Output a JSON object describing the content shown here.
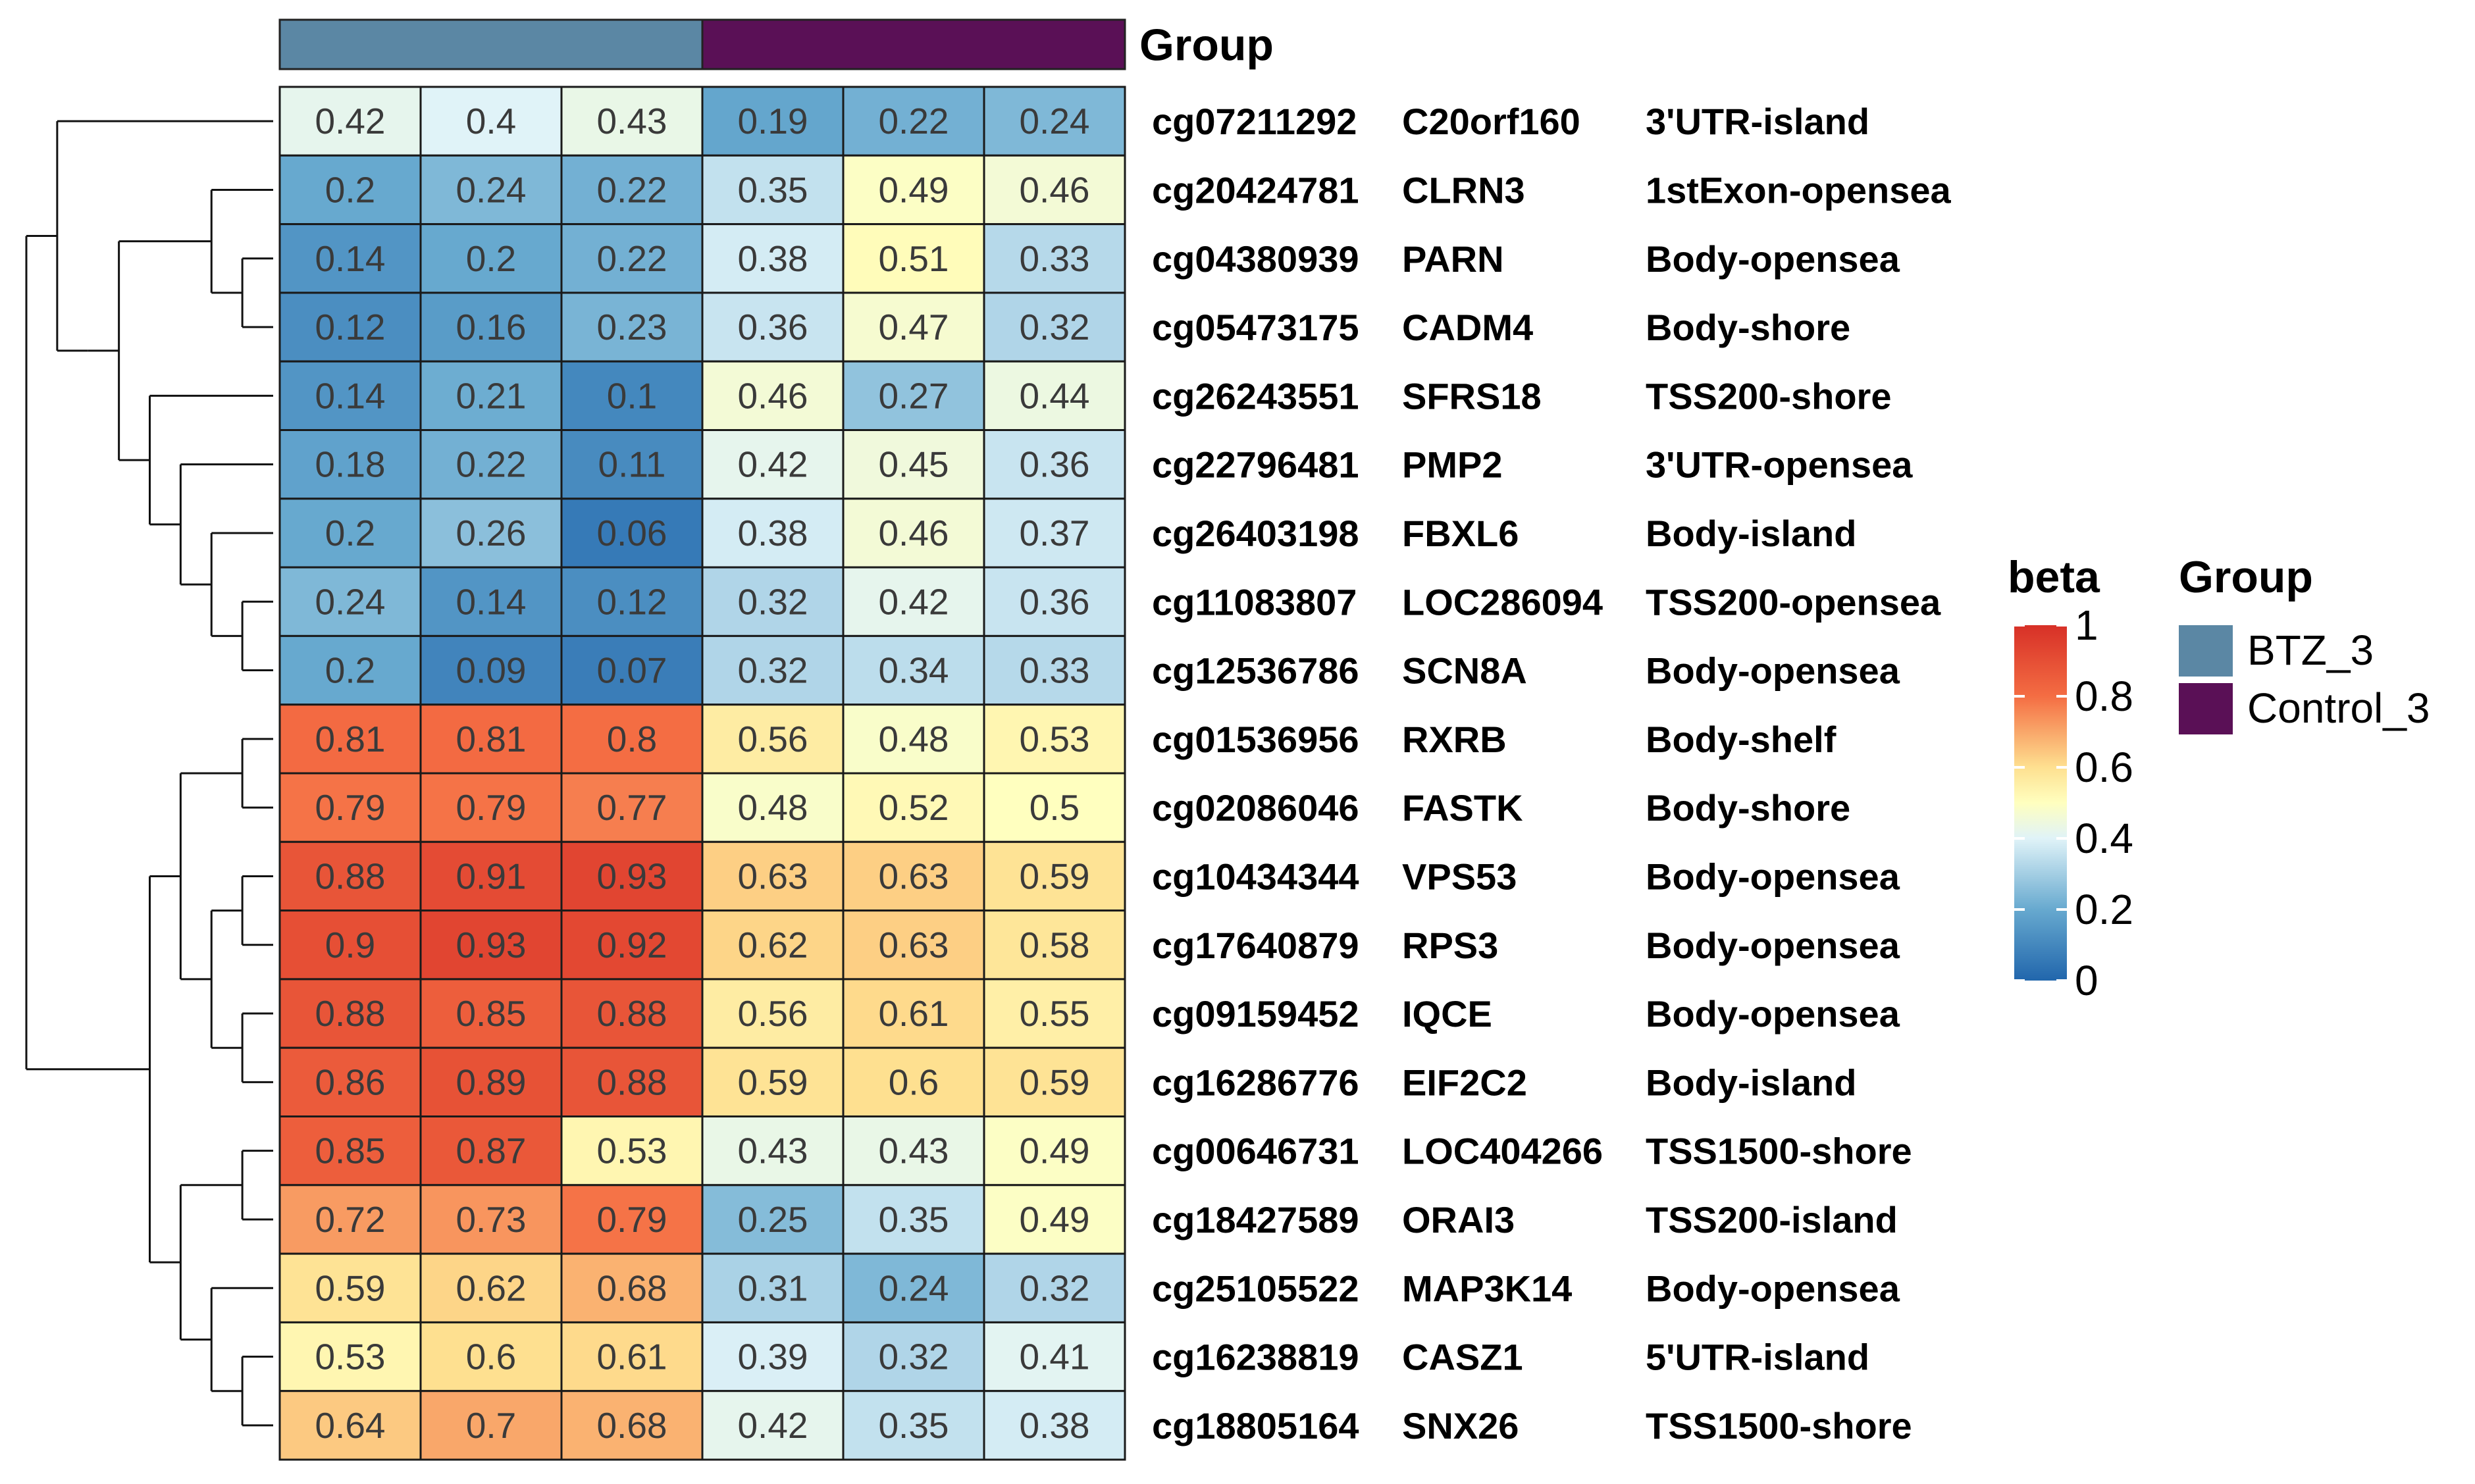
{
  "chart_data": {
    "type": "heatmap",
    "title": "",
    "annotation": {
      "title": "Group",
      "columns": [
        "BTZ_3",
        "BTZ_3",
        "BTZ_3",
        "Control_3",
        "Control_3",
        "Control_3"
      ],
      "colors": {
        "BTZ_3": "#5b87a4",
        "Control_3": "#5a1056"
      }
    },
    "rows": [
      {
        "probe": "cg07211292",
        "gene": "C20orf160",
        "region": "3'UTR-island",
        "values": [
          0.42,
          0.4,
          0.43,
          0.19,
          0.22,
          0.24
        ],
        "labels": [
          "0.42",
          "0.4",
          "0.43",
          "0.19",
          "0.22",
          "0.24"
        ]
      },
      {
        "probe": "cg20424781",
        "gene": "CLRN3",
        "region": "1stExon-opensea",
        "values": [
          0.2,
          0.24,
          0.22,
          0.35,
          0.49,
          0.46
        ],
        "labels": [
          "0.2",
          "0.24",
          "0.22",
          "0.35",
          "0.49",
          "0.46"
        ]
      },
      {
        "probe": "cg04380939",
        "gene": "PARN",
        "region": "Body-opensea",
        "values": [
          0.14,
          0.2,
          0.22,
          0.38,
          0.51,
          0.33
        ],
        "labels": [
          "0.14",
          "0.2",
          "0.22",
          "0.38",
          "0.51",
          "0.33"
        ]
      },
      {
        "probe": "cg05473175",
        "gene": "CADM4",
        "region": "Body-shore",
        "values": [
          0.12,
          0.16,
          0.23,
          0.36,
          0.47,
          0.32
        ],
        "labels": [
          "0.12",
          "0.16",
          "0.23",
          "0.36",
          "0.47",
          "0.32"
        ]
      },
      {
        "probe": "cg26243551",
        "gene": "SFRS18",
        "region": "TSS200-shore",
        "values": [
          0.14,
          0.21,
          0.1,
          0.46,
          0.27,
          0.44
        ],
        "labels": [
          "0.14",
          "0.21",
          "0.1",
          "0.46",
          "0.27",
          "0.44"
        ]
      },
      {
        "probe": "cg22796481",
        "gene": "PMP2",
        "region": "3'UTR-opensea",
        "values": [
          0.18,
          0.22,
          0.11,
          0.42,
          0.45,
          0.36
        ],
        "labels": [
          "0.18",
          "0.22",
          "0.11",
          "0.42",
          "0.45",
          "0.36"
        ]
      },
      {
        "probe": "cg26403198",
        "gene": "FBXL6",
        "region": "Body-island",
        "values": [
          0.2,
          0.26,
          0.06,
          0.38,
          0.46,
          0.37
        ],
        "labels": [
          "0.2",
          "0.26",
          "0.06",
          "0.38",
          "0.46",
          "0.37"
        ]
      },
      {
        "probe": "cg11083807",
        "gene": "LOC286094",
        "region": "TSS200-opensea",
        "values": [
          0.24,
          0.14,
          0.12,
          0.32,
          0.42,
          0.36
        ],
        "labels": [
          "0.24",
          "0.14",
          "0.12",
          "0.32",
          "0.42",
          "0.36"
        ]
      },
      {
        "probe": "cg12536786",
        "gene": "SCN8A",
        "region": "Body-opensea",
        "values": [
          0.2,
          0.09,
          0.07,
          0.32,
          0.34,
          0.33
        ],
        "labels": [
          "0.2",
          "0.09",
          "0.07",
          "0.32",
          "0.34",
          "0.33"
        ]
      },
      {
        "probe": "cg01536956",
        "gene": "RXRB",
        "region": "Body-shelf",
        "values": [
          0.81,
          0.81,
          0.8,
          0.56,
          0.48,
          0.53
        ],
        "labels": [
          "0.81",
          "0.81",
          "0.8",
          "0.56",
          "0.48",
          "0.53"
        ]
      },
      {
        "probe": "cg02086046",
        "gene": "FASTK",
        "region": "Body-shore",
        "values": [
          0.79,
          0.79,
          0.77,
          0.48,
          0.52,
          0.5
        ],
        "labels": [
          "0.79",
          "0.79",
          "0.77",
          "0.48",
          "0.52",
          "0.5"
        ]
      },
      {
        "probe": "cg10434344",
        "gene": "VPS53",
        "region": "Body-opensea",
        "values": [
          0.88,
          0.91,
          0.93,
          0.63,
          0.63,
          0.59
        ],
        "labels": [
          "0.88",
          "0.91",
          "0.93",
          "0.63",
          "0.63",
          "0.59"
        ]
      },
      {
        "probe": "cg17640879",
        "gene": "RPS3",
        "region": "Body-opensea",
        "values": [
          0.9,
          0.93,
          0.92,
          0.62,
          0.63,
          0.58
        ],
        "labels": [
          "0.9",
          "0.93",
          "0.92",
          "0.62",
          "0.63",
          "0.58"
        ]
      },
      {
        "probe": "cg09159452",
        "gene": "IQCE",
        "region": "Body-opensea",
        "values": [
          0.88,
          0.85,
          0.88,
          0.56,
          0.61,
          0.55
        ],
        "labels": [
          "0.88",
          "0.85",
          "0.88",
          "0.56",
          "0.61",
          "0.55"
        ]
      },
      {
        "probe": "cg16286776",
        "gene": "EIF2C2",
        "region": "Body-island",
        "values": [
          0.86,
          0.89,
          0.88,
          0.59,
          0.6,
          0.59
        ],
        "labels": [
          "0.86",
          "0.89",
          "0.88",
          "0.59",
          "0.6",
          "0.59"
        ]
      },
      {
        "probe": "cg00646731",
        "gene": "LOC404266",
        "region": "TSS1500-shore",
        "values": [
          0.85,
          0.87,
          0.53,
          0.43,
          0.43,
          0.49
        ],
        "labels": [
          "0.85",
          "0.87",
          "0.53",
          "0.43",
          "0.43",
          "0.49"
        ]
      },
      {
        "probe": "cg18427589",
        "gene": "ORAI3",
        "region": "TSS200-island",
        "values": [
          0.72,
          0.73,
          0.79,
          0.25,
          0.35,
          0.49
        ],
        "labels": [
          "0.72",
          "0.73",
          "0.79",
          "0.25",
          "0.35",
          "0.49"
        ]
      },
      {
        "probe": "cg25105522",
        "gene": "MAP3K14",
        "region": "Body-opensea",
        "values": [
          0.59,
          0.62,
          0.68,
          0.31,
          0.24,
          0.32
        ],
        "labels": [
          "0.59",
          "0.62",
          "0.68",
          "0.31",
          "0.24",
          "0.32"
        ]
      },
      {
        "probe": "cg16238819",
        "gene": "CASZ1",
        "region": "5'UTR-island",
        "values": [
          0.53,
          0.6,
          0.61,
          0.39,
          0.32,
          0.41
        ],
        "labels": [
          "0.53",
          "0.6",
          "0.61",
          "0.39",
          "0.32",
          "0.41"
        ]
      },
      {
        "probe": "cg18805164",
        "gene": "SNX26",
        "region": "TSS1500-shore",
        "values": [
          0.64,
          0.7,
          0.68,
          0.42,
          0.35,
          0.38
        ],
        "labels": [
          "0.64",
          "0.7",
          "0.68",
          "0.42",
          "0.35",
          "0.38"
        ]
      }
    ],
    "color_scale": {
      "title": "beta",
      "range": [
        0,
        1
      ],
      "ticks": [
        "1",
        "0.8",
        "0.6",
        "0.4",
        "0.2",
        "0"
      ],
      "stops": [
        {
          "value": 0.0,
          "color": "#2166ac"
        },
        {
          "value": 0.2,
          "color": "#67a9cf"
        },
        {
          "value": 0.4,
          "color": "#e0f3f8"
        },
        {
          "value": 0.5,
          "color": "#ffffbf"
        },
        {
          "value": 0.6,
          "color": "#fee090"
        },
        {
          "value": 0.8,
          "color": "#f46d43"
        },
        {
          "value": 1.0,
          "color": "#d73027"
        }
      ]
    },
    "group_legend": {
      "title": "Group",
      "items": [
        {
          "label": "BTZ_3",
          "color": "#5b87a4"
        },
        {
          "label": "Control_3",
          "color": "#5a1056"
        }
      ]
    },
    "dendrogram": {
      "type": "row",
      "merges": [
        [
          2,
          3
        ],
        [
          7,
          8
        ],
        [
          6,
          9
        ],
        [
          5,
          10
        ],
        [
          4,
          11
        ],
        [
          1,
          12
        ],
        [
          13,
          14
        ],
        [
          17,
          18
        ],
        [
          19,
          20
        ],
        [
          -1,
          -13
        ],
        [
          -2,
          -14
        ],
        [
          -3,
          -15
        ],
        [
          -4,
          -16
        ],
        [
          -5,
          -17
        ],
        [
          -6,
          -18
        ],
        [
          -7,
          -19
        ],
        [
          -8,
          -20
        ],
        [
          -9,
          -21
        ],
        [
          -10,
          -22
        ]
      ],
      "note": "merge structure encoded programmatically in script"
    }
  }
}
